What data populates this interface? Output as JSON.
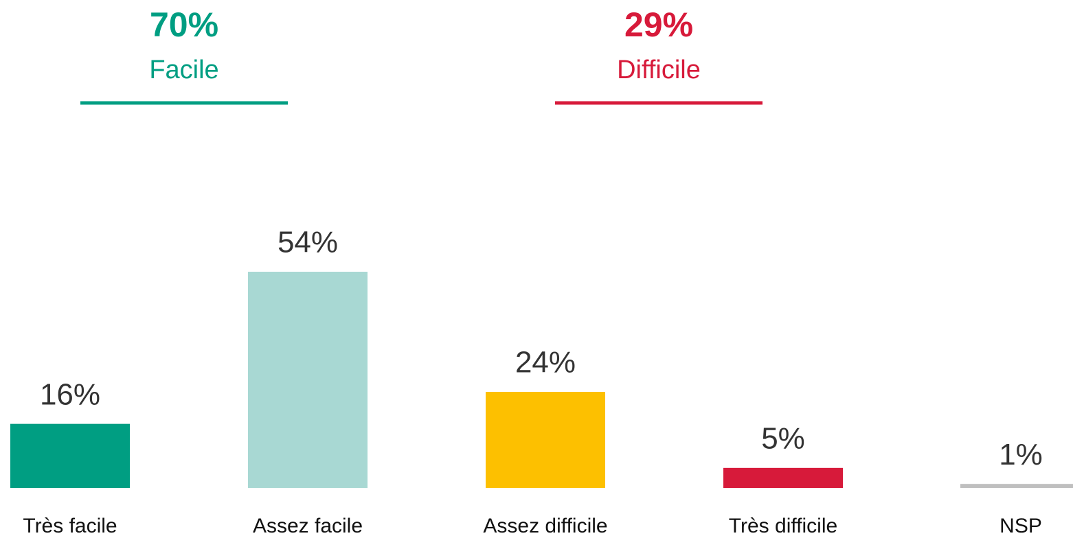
{
  "chart_data": {
    "type": "bar",
    "categories": [
      "Très facile",
      "Assez facile",
      "Assez difficile",
      "Très difficile",
      "NSP"
    ],
    "values": [
      16,
      54,
      24,
      5,
      1
    ],
    "value_labels": [
      "16%",
      "54%",
      "24%",
      "5%",
      "1%"
    ],
    "colors": [
      "#009e82",
      "#a8d8d3",
      "#fdc000",
      "#d71a3a",
      "#bfbfbf"
    ],
    "ylim": [
      0,
      60
    ],
    "groups": [
      {
        "name": "Facile",
        "value": 70,
        "value_label": "70%",
        "color": "#009e82"
      },
      {
        "name": "Difficile",
        "value": 29,
        "value_label": "29%",
        "color": "#d71a3a"
      }
    ]
  }
}
